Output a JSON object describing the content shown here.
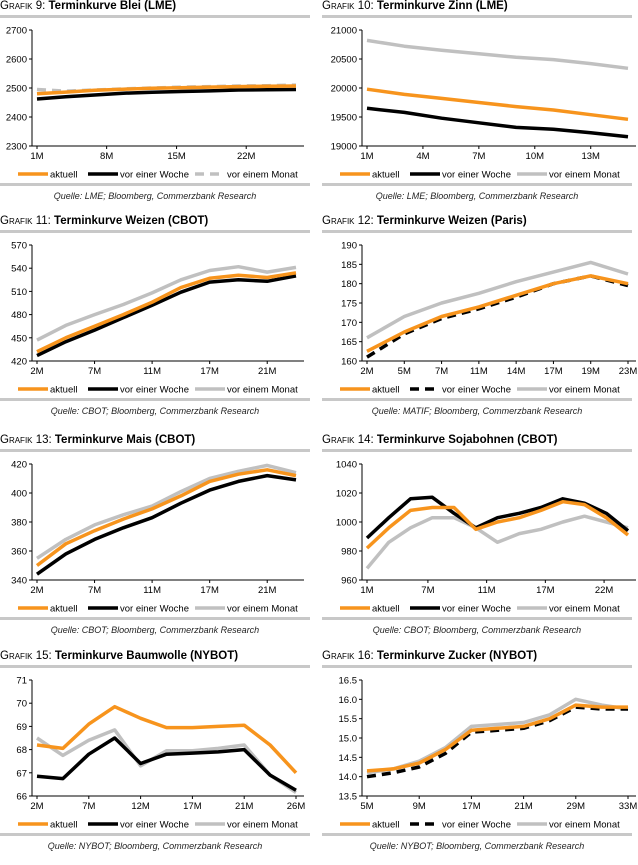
{
  "colors": {
    "aktuell": "#f7941d",
    "woche": "#000000",
    "monat": "#c0c0c0"
  },
  "legend": {
    "aktuell": "aktuell",
    "woche": "vor einer Woche",
    "monat": "vor einem Monat"
  },
  "chart_data": [
    {
      "type": "line",
      "prefix": "Grafik 9:",
      "title": "Terminkurve Blei (LME)",
      "ylim": [
        2300,
        2700
      ],
      "yticks": [
        "2300",
        "2400",
        "2500",
        "2600",
        "2700"
      ],
      "xlabels": [
        {
          "text": "1M",
          "at": 0
        },
        {
          "text": "8M",
          "at": 2.42
        },
        {
          "text": "15M",
          "at": 4.85
        },
        {
          "text": "22M",
          "at": 7.27
        }
      ],
      "series": [
        {
          "key": "aktuell",
          "dash": false,
          "values": [
            2480,
            2486,
            2492,
            2496,
            2499,
            2501,
            2503,
            2505,
            2506,
            2507
          ]
        },
        {
          "key": "woche",
          "dash": false,
          "values": [
            2462,
            2470,
            2476,
            2482,
            2485,
            2488,
            2490,
            2493,
            2494,
            2495
          ]
        },
        {
          "key": "monat",
          "dash": true,
          "values": [
            2495,
            2489,
            2493,
            2497,
            2500,
            2503,
            2505,
            2507,
            2508,
            2510
          ]
        }
      ],
      "source": "Quelle: LME; Bloomberg, Commerzbank Research"
    },
    {
      "type": "line",
      "prefix": "Grafik 10:",
      "title": "Terminkurve Zinn (LME)",
      "ylim": [
        19000,
        21000
      ],
      "yticks": [
        "19000",
        "19500",
        "20000",
        "20500",
        "21000"
      ],
      "xlabels": [
        {
          "text": "1M",
          "at": 0
        },
        {
          "text": "4M",
          "at": 1.5
        },
        {
          "text": "7M",
          "at": 3
        },
        {
          "text": "10M",
          "at": 4.5
        },
        {
          "text": "13M",
          "at": 6
        }
      ],
      "series": [
        {
          "key": "aktuell",
          "dash": false,
          "values": [
            19980,
            19890,
            19820,
            19750,
            19680,
            19620,
            19540,
            19460
          ]
        },
        {
          "key": "woche",
          "dash": false,
          "values": [
            19650,
            19580,
            19480,
            19400,
            19320,
            19290,
            19230,
            19160
          ]
        },
        {
          "key": "monat",
          "dash": false,
          "values": [
            20820,
            20720,
            20650,
            20590,
            20530,
            20490,
            20420,
            20340
          ]
        }
      ],
      "source": "Quelle: LME; Bloomberg, Commerzbank Research"
    },
    {
      "type": "line",
      "prefix": "Grafik 11:",
      "title": "Terminkurve Weizen (CBOT)",
      "ylim": [
        420,
        570
      ],
      "yticks": [
        "420",
        "450",
        "480",
        "510",
        "540",
        "570"
      ],
      "xlabels": [
        {
          "text": "2M",
          "at": 0
        },
        {
          "text": "7M",
          "at": 2
        },
        {
          "text": "11M",
          "at": 4
        },
        {
          "text": "17M",
          "at": 6
        },
        {
          "text": "21M",
          "at": 8
        }
      ],
      "series": [
        {
          "key": "aktuell",
          "dash": false,
          "values": [
            432,
            450,
            465,
            480,
            496,
            515,
            527,
            531,
            528,
            534
          ]
        },
        {
          "key": "woche",
          "dash": false,
          "values": [
            427,
            445,
            460,
            476,
            492,
            509,
            522,
            525,
            523,
            530
          ]
        },
        {
          "key": "monat",
          "dash": false,
          "values": [
            447,
            466,
            480,
            493,
            508,
            525,
            537,
            542,
            535,
            541
          ]
        }
      ],
      "source": "Quelle: CBOT; Bloomberg, Commerzbank Research"
    },
    {
      "type": "line",
      "prefix": "Grafik 12:",
      "title": "Terminkurve Weizen (Paris)",
      "ylim": [
        160,
        190
      ],
      "yticks": [
        "160",
        "165",
        "170",
        "175",
        "180",
        "185",
        "190"
      ],
      "xlabels": [
        {
          "text": "2M",
          "at": 0
        },
        {
          "text": "5M",
          "at": 1
        },
        {
          "text": "7M",
          "at": 2
        },
        {
          "text": "11M",
          "at": 3
        },
        {
          "text": "14M",
          "at": 4
        },
        {
          "text": "17M",
          "at": 5
        },
        {
          "text": "19M",
          "at": 6
        },
        {
          "text": "23M",
          "at": 7
        }
      ],
      "series": [
        {
          "key": "aktuell",
          "dash": false,
          "values": [
            162.5,
            167.5,
            171.5,
            174,
            177,
            180,
            182,
            180
          ]
        },
        {
          "key": "woche",
          "dash": true,
          "values": [
            161,
            167,
            171,
            173.5,
            176.5,
            180,
            182,
            179.5
          ]
        },
        {
          "key": "monat",
          "dash": false,
          "values": [
            166,
            171.5,
            175,
            177.5,
            180.5,
            183,
            185.5,
            182.5
          ]
        }
      ],
      "source": "Quelle: MATIF; Bloomberg, Commerzbank Research"
    },
    {
      "type": "line",
      "prefix": "Grafik 13:",
      "title": "Terminkurve Mais (CBOT)",
      "ylim": [
        340,
        420
      ],
      "yticks": [
        "340",
        "360",
        "380",
        "400",
        "420"
      ],
      "xlabels": [
        {
          "text": "2M",
          "at": 0
        },
        {
          "text": "7M",
          "at": 2
        },
        {
          "text": "11M",
          "at": 4
        },
        {
          "text": "17M",
          "at": 6
        },
        {
          "text": "21M",
          "at": 8
        }
      ],
      "series": [
        {
          "key": "aktuell",
          "dash": false,
          "values": [
            350,
            365,
            374,
            382,
            389,
            398,
            408,
            413,
            416,
            412
          ]
        },
        {
          "key": "woche",
          "dash": false,
          "values": [
            344,
            358,
            368,
            376,
            383,
            393,
            402,
            408,
            412,
            409
          ]
        },
        {
          "key": "monat",
          "dash": false,
          "values": [
            355,
            368,
            378,
            385,
            391,
            401,
            410,
            415,
            419,
            414
          ]
        }
      ],
      "source": "Quelle: CBOT; Bloomberg, Commerzbank Research"
    },
    {
      "type": "line",
      "prefix": "Grafik 14:",
      "title": "Terminkurve Sojabohnen (CBOT)",
      "ylim": [
        960,
        1040
      ],
      "yticks": [
        "960",
        "980",
        "1000",
        "1020",
        "1040"
      ],
      "xlabels": [
        {
          "text": "1M",
          "at": 0
        },
        {
          "text": "7M",
          "at": 2.8
        },
        {
          "text": "11M",
          "at": 5.5
        },
        {
          "text": "17M",
          "at": 8.2
        },
        {
          "text": "22M",
          "at": 10.9
        }
      ],
      "series": [
        {
          "key": "aktuell",
          "dash": false,
          "values": [
            982,
            996,
            1008,
            1010,
            1010,
            995,
            1000,
            1003,
            1008,
            1014,
            1012,
            1003,
            991
          ]
        },
        {
          "key": "woche",
          "dash": false,
          "values": [
            989,
            1003,
            1016,
            1017,
            1006,
            996,
            1003,
            1006,
            1010,
            1016,
            1013,
            1006,
            994
          ]
        },
        {
          "key": "monat",
          "dash": false,
          "values": [
            968,
            986,
            996,
            1003,
            1003,
            996,
            986,
            992,
            995,
            1000,
            1004,
            1000,
            996
          ]
        }
      ],
      "source": "Quelle: CBOT; Bloomberg, Commerzbank Research"
    },
    {
      "type": "line",
      "prefix": "Grafik 15:",
      "title": "Terminkurve Baumwolle (NYBOT)",
      "ylim": [
        66,
        71
      ],
      "yticks": [
        "66",
        "67",
        "68",
        "69",
        "70",
        "71"
      ],
      "xlabels": [
        {
          "text": "2M",
          "at": 0
        },
        {
          "text": "7M",
          "at": 2
        },
        {
          "text": "12M",
          "at": 4
        },
        {
          "text": "17M",
          "at": 6
        },
        {
          "text": "21M",
          "at": 8
        },
        {
          "text": "26M",
          "at": 10
        }
      ],
      "series": [
        {
          "key": "aktuell",
          "dash": false,
          "values": [
            68.2,
            68.05,
            69.1,
            69.85,
            69.35,
            68.95,
            68.95,
            69.0,
            69.05,
            68.2,
            67.0
          ]
        },
        {
          "key": "woche",
          "dash": false,
          "values": [
            66.85,
            66.75,
            67.8,
            68.5,
            67.4,
            67.8,
            67.85,
            67.9,
            68.0,
            66.9,
            66.25
          ]
        },
        {
          "key": "monat",
          "dash": false,
          "values": [
            68.5,
            67.75,
            68.4,
            68.85,
            67.3,
            67.95,
            67.95,
            68.05,
            68.2,
            66.9,
            66.15
          ]
        }
      ],
      "source": "Quelle: NYBOT; Bloomberg, Commerzbank Research"
    },
    {
      "type": "line",
      "prefix": "Grafik 16:",
      "title": "Terminkurve Zucker (NYBOT)",
      "ylim": [
        13.5,
        16.5
      ],
      "yticks": [
        "13.5",
        "14.0",
        "14.5",
        "15.0",
        "15.5",
        "16.0",
        "16.5"
      ],
      "xlabels": [
        {
          "text": "5M",
          "at": 0
        },
        {
          "text": "9M",
          "at": 2
        },
        {
          "text": "17M",
          "at": 4
        },
        {
          "text": "21M",
          "at": 6
        },
        {
          "text": "29M",
          "at": 8
        },
        {
          "text": "33M",
          "at": 10
        }
      ],
      "series": [
        {
          "key": "aktuell",
          "dash": false,
          "values": [
            14.15,
            14.2,
            14.35,
            14.7,
            15.2,
            15.25,
            15.3,
            15.5,
            15.85,
            15.8,
            15.8
          ]
        },
        {
          "key": "woche",
          "dash": true,
          "values": [
            14.0,
            14.1,
            14.25,
            14.6,
            15.15,
            15.2,
            15.25,
            15.45,
            15.8,
            15.75,
            15.75
          ]
        },
        {
          "key": "monat",
          "dash": false,
          "values": [
            14.1,
            14.2,
            14.4,
            14.75,
            15.3,
            15.35,
            15.4,
            15.6,
            16.0,
            15.85,
            15.75
          ]
        }
      ],
      "source": "Quelle: NYBOT; Bloomberg, Commerzbank Research"
    }
  ]
}
